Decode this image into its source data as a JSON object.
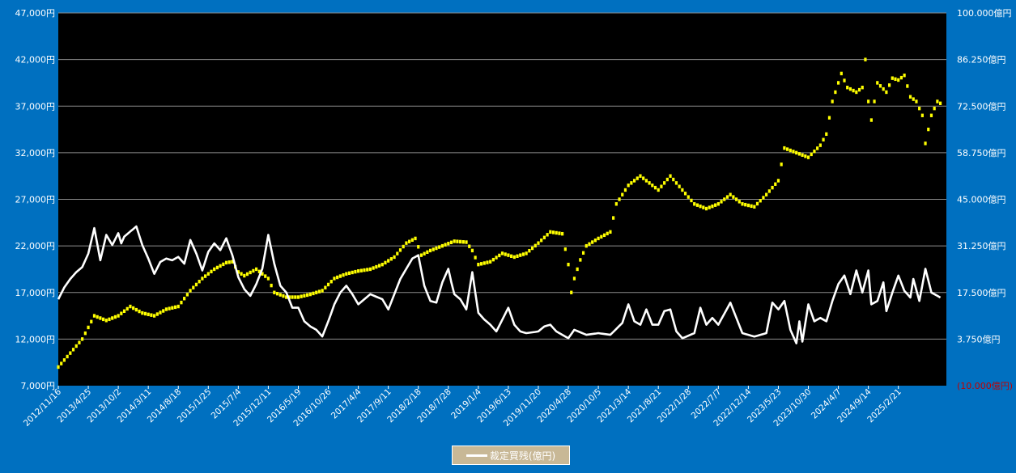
{
  "chart_data": {
    "type": "line",
    "title": "",
    "background": "#000000",
    "frame_color": "#0070c0",
    "gridlines": true,
    "y_left": {
      "ylim": [
        7000,
        47000
      ],
      "tick_values": [
        7000,
        12000,
        17000,
        22000,
        27000,
        32000,
        37000,
        42000,
        47000
      ],
      "tick_labels": [
        "7,000円",
        "12,000円",
        "17,000円",
        "22,000円",
        "27,000円",
        "32,000円",
        "37,000円",
        "42,000円",
        "47,000円"
      ]
    },
    "y_right": {
      "ylim": [
        -10000,
        100000
      ],
      "tick_values": [
        -10000,
        3750,
        17500,
        31250,
        45000,
        58750,
        72500,
        86250,
        100000
      ],
      "tick_labels": [
        "(10.000億円)",
        "3.750億円",
        "17.500億円",
        "31.250億円",
        "45.000億円",
        "58.750億円",
        "72.500億円",
        "86.250億円",
        "100.000億円"
      ],
      "negative_color": "#c00000"
    },
    "x_tick_labels": [
      "2012/11/16",
      "2013/4/25",
      "2013/10/2",
      "2014/3/11",
      "2014/8/18",
      "2015/1/25",
      "2015/7/4",
      "2015/12/11",
      "2016/5/19",
      "2016/10/26",
      "2017/4/4",
      "2017/9/11",
      "2018/2/18",
      "2018/7/28",
      "2019/1/4",
      "2019/6/13",
      "2019/11/20",
      "2020/4/28",
      "2020/10/5",
      "2021/3/14",
      "2021/8/21",
      "2022/1/28",
      "2022/7/7",
      "2022/12/14",
      "2023/5/23",
      "2023/10/30",
      "2024/4/7",
      "2024/9/14",
      "2025/2/21"
    ],
    "x_tick_index": [
      0,
      10,
      20,
      30,
      40,
      50,
      60,
      70,
      80,
      90,
      100,
      110,
      120,
      130,
      140,
      150,
      160,
      170,
      180,
      190,
      200,
      210,
      220,
      230,
      240,
      250,
      260,
      270,
      280
    ],
    "point_count": 297,
    "legend_position": "bottom",
    "series": [
      {
        "name": "",
        "axis": "left",
        "style": "dotted",
        "color": "#ffff00",
        "anchors": [
          [
            0,
            9000
          ],
          [
            4,
            10500
          ],
          [
            8,
            12000
          ],
          [
            12,
            14500
          ],
          [
            16,
            14000
          ],
          [
            20,
            14500
          ],
          [
            24,
            15500
          ],
          [
            28,
            14800
          ],
          [
            32,
            14500
          ],
          [
            36,
            15200
          ],
          [
            40,
            15500
          ],
          [
            44,
            17200
          ],
          [
            48,
            18500
          ],
          [
            52,
            19500
          ],
          [
            56,
            20200
          ],
          [
            58,
            20300
          ],
          [
            60,
            19200
          ],
          [
            62,
            18800
          ],
          [
            66,
            19500
          ],
          [
            70,
            18500
          ],
          [
            72,
            17000
          ],
          [
            76,
            16500
          ],
          [
            80,
            16500
          ],
          [
            84,
            16800
          ],
          [
            88,
            17200
          ],
          [
            92,
            18500
          ],
          [
            96,
            19000
          ],
          [
            100,
            19300
          ],
          [
            104,
            19500
          ],
          [
            108,
            20000
          ],
          [
            112,
            20800
          ],
          [
            116,
            22300
          ],
          [
            119,
            22800
          ],
          [
            121,
            21000
          ],
          [
            124,
            21500
          ],
          [
            128,
            22000
          ],
          [
            132,
            22500
          ],
          [
            136,
            22400
          ],
          [
            138,
            21500
          ],
          [
            140,
            20000
          ],
          [
            144,
            20300
          ],
          [
            148,
            21200
          ],
          [
            152,
            20800
          ],
          [
            156,
            21200
          ],
          [
            160,
            22300
          ],
          [
            164,
            23500
          ],
          [
            168,
            23300
          ],
          [
            170,
            20000
          ],
          [
            171,
            17000
          ],
          [
            172,
            18500
          ],
          [
            174,
            20500
          ],
          [
            176,
            22000
          ],
          [
            180,
            22800
          ],
          [
            184,
            23500
          ],
          [
            186,
            26500
          ],
          [
            190,
            28500
          ],
          [
            194,
            29500
          ],
          [
            196,
            29000
          ],
          [
            200,
            28000
          ],
          [
            204,
            29500
          ],
          [
            208,
            28000
          ],
          [
            212,
            26500
          ],
          [
            216,
            26000
          ],
          [
            220,
            26500
          ],
          [
            224,
            27500
          ],
          [
            228,
            26500
          ],
          [
            232,
            26200
          ],
          [
            236,
            27500
          ],
          [
            240,
            29000
          ],
          [
            242,
            32500
          ],
          [
            246,
            32000
          ],
          [
            250,
            31500
          ],
          [
            254,
            32800
          ],
          [
            256,
            34000
          ],
          [
            258,
            37500
          ],
          [
            261,
            40500
          ],
          [
            263,
            39000
          ],
          [
            266,
            38500
          ],
          [
            268,
            39000
          ],
          [
            269,
            42000
          ],
          [
            270,
            37500
          ],
          [
            271,
            35500
          ],
          [
            273,
            39500
          ],
          [
            276,
            38500
          ],
          [
            278,
            40000
          ],
          [
            280,
            39800
          ],
          [
            282,
            40300
          ],
          [
            284,
            38000
          ],
          [
            286,
            37500
          ],
          [
            288,
            36000
          ],
          [
            289,
            33000
          ],
          [
            291,
            36000
          ],
          [
            293,
            37500
          ],
          [
            294,
            37300
          ]
        ]
      },
      {
        "name": "裁定買残(億円)",
        "axis": "right",
        "style": "line",
        "color": "#ffffff",
        "anchors": [
          [
            0,
            15500
          ],
          [
            2,
            19000
          ],
          [
            4,
            21500
          ],
          [
            6,
            23500
          ],
          [
            8,
            25000
          ],
          [
            10,
            29000
          ],
          [
            12,
            36500
          ],
          [
            14,
            27000
          ],
          [
            16,
            34500
          ],
          [
            18,
            31500
          ],
          [
            20,
            35000
          ],
          [
            21,
            32000
          ],
          [
            22,
            34000
          ],
          [
            24,
            35500
          ],
          [
            26,
            37000
          ],
          [
            28,
            31500
          ],
          [
            30,
            27500
          ],
          [
            32,
            23000
          ],
          [
            34,
            26500
          ],
          [
            36,
            27500
          ],
          [
            38,
            27000
          ],
          [
            40,
            28000
          ],
          [
            42,
            26000
          ],
          [
            44,
            33000
          ],
          [
            46,
            29000
          ],
          [
            48,
            24000
          ],
          [
            50,
            29500
          ],
          [
            52,
            32000
          ],
          [
            54,
            30000
          ],
          [
            56,
            33500
          ],
          [
            58,
            28500
          ],
          [
            60,
            22000
          ],
          [
            62,
            18500
          ],
          [
            64,
            16500
          ],
          [
            66,
            20000
          ],
          [
            68,
            24500
          ],
          [
            70,
            34500
          ],
          [
            72,
            26000
          ],
          [
            74,
            19500
          ],
          [
            76,
            17500
          ],
          [
            78,
            13000
          ],
          [
            80,
            13000
          ],
          [
            82,
            9000
          ],
          [
            84,
            7500
          ],
          [
            86,
            6500
          ],
          [
            88,
            4500
          ],
          [
            90,
            9000
          ],
          [
            92,
            14000
          ],
          [
            94,
            17500
          ],
          [
            96,
            19500
          ],
          [
            98,
            17000
          ],
          [
            100,
            14000
          ],
          [
            104,
            17000
          ],
          [
            108,
            15500
          ],
          [
            110,
            12500
          ],
          [
            112,
            17000
          ],
          [
            114,
            21500
          ],
          [
            116,
            24500
          ],
          [
            118,
            27500
          ],
          [
            120,
            28500
          ],
          [
            122,
            19500
          ],
          [
            124,
            15000
          ],
          [
            126,
            14500
          ],
          [
            128,
            20500
          ],
          [
            130,
            24500
          ],
          [
            131,
            20500
          ],
          [
            132,
            17000
          ],
          [
            134,
            15500
          ],
          [
            136,
            12500
          ],
          [
            138,
            23500
          ],
          [
            140,
            11500
          ],
          [
            142,
            9500
          ],
          [
            144,
            8000
          ],
          [
            146,
            6000
          ],
          [
            150,
            13000
          ],
          [
            152,
            8000
          ],
          [
            154,
            6000
          ],
          [
            156,
            5500
          ],
          [
            160,
            6000
          ],
          [
            162,
            7500
          ],
          [
            164,
            8000
          ],
          [
            166,
            6000
          ],
          [
            170,
            4000
          ],
          [
            172,
            6500
          ],
          [
            176,
            5000
          ],
          [
            180,
            5500
          ],
          [
            184,
            5000
          ],
          [
            188,
            8500
          ],
          [
            190,
            14000
          ],
          [
            192,
            9000
          ],
          [
            194,
            8000
          ],
          [
            196,
            12500
          ],
          [
            198,
            8000
          ],
          [
            200,
            8000
          ],
          [
            202,
            12000
          ],
          [
            204,
            12500
          ],
          [
            206,
            6000
          ],
          [
            208,
            4000
          ],
          [
            212,
            5500
          ],
          [
            214,
            13000
          ],
          [
            216,
            8000
          ],
          [
            218,
            10000
          ],
          [
            220,
            8000
          ],
          [
            224,
            14500
          ],
          [
            228,
            5500
          ],
          [
            232,
            4500
          ],
          [
            236,
            5500
          ],
          [
            238,
            14500
          ],
          [
            240,
            12500
          ],
          [
            242,
            15000
          ],
          [
            244,
            6500
          ],
          [
            246,
            2500
          ],
          [
            247,
            9000
          ],
          [
            248,
            3000
          ],
          [
            250,
            14000
          ],
          [
            252,
            9000
          ],
          [
            254,
            10000
          ],
          [
            256,
            9000
          ],
          [
            258,
            15000
          ],
          [
            260,
            20000
          ],
          [
            262,
            22500
          ],
          [
            264,
            17000
          ],
          [
            266,
            24000
          ],
          [
            268,
            17500
          ],
          [
            270,
            24000
          ],
          [
            271,
            14000
          ],
          [
            273,
            15000
          ],
          [
            275,
            20500
          ],
          [
            276,
            12000
          ],
          [
            278,
            17500
          ],
          [
            280,
            22500
          ],
          [
            282,
            18000
          ],
          [
            284,
            16000
          ],
          [
            285,
            21500
          ],
          [
            287,
            15000
          ],
          [
            289,
            24500
          ],
          [
            291,
            17500
          ],
          [
            294,
            16000
          ]
        ]
      }
    ]
  }
}
